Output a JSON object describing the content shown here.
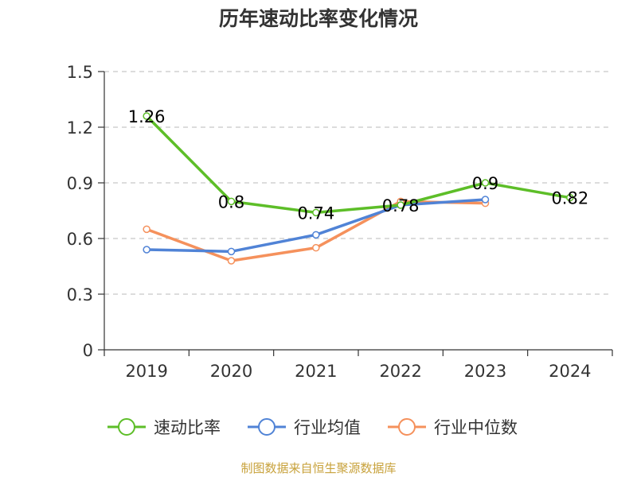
{
  "chart_data": {
    "type": "line",
    "title": "历年速动比率变化情况",
    "categories": [
      "2019",
      "2020",
      "2021",
      "2022",
      "2023",
      "2024"
    ],
    "ylim": [
      0,
      1.5
    ],
    "yticks": [
      "0",
      "0.3",
      "0.6",
      "0.9",
      "1.2",
      "1.5"
    ],
    "grid": "dashed horizontal",
    "legend_position": "bottom",
    "series": [
      {
        "name": "速动比率",
        "color": "#5dbe28",
        "values": [
          1.26,
          0.8,
          0.74,
          0.78,
          0.9,
          0.82
        ],
        "labels": [
          "1.26",
          "0.8",
          "0.74",
          "0.78",
          "0.9",
          "0.82"
        ]
      },
      {
        "name": "行业均值",
        "color": "#5083d6",
        "values": [
          0.54,
          0.53,
          0.62,
          0.78,
          0.81,
          null
        ]
      },
      {
        "name": "行业中位数",
        "color": "#f5915c",
        "values": [
          0.65,
          0.48,
          0.55,
          0.8,
          0.79,
          null
        ]
      }
    ],
    "source": "制图数据来自恒生聚源数据库"
  }
}
